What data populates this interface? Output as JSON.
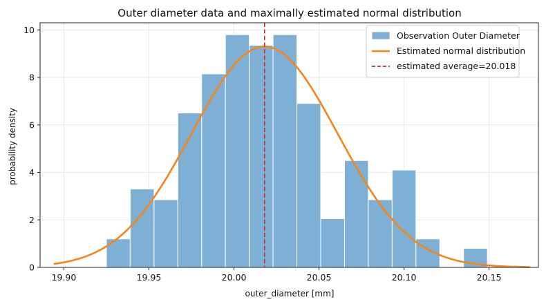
{
  "chart_data": {
    "type": "bar",
    "title": "Outer diameter data and maximally estimated normal distribution",
    "xlabel": "outer_diameter [mm]",
    "ylabel": "probability density",
    "xlim": [
      19.886,
      20.179
    ],
    "ylim": [
      0,
      10.3
    ],
    "x_ticks": [
      19.9,
      19.95,
      20.0,
      20.05,
      20.1,
      20.15
    ],
    "x_tick_labels": [
      "19.90",
      "19.95",
      "20.00",
      "20.05",
      "20.10",
      "20.15"
    ],
    "y_ticks": [
      0,
      2,
      4,
      6,
      8,
      10
    ],
    "y_tick_labels": [
      "0",
      "2",
      "4",
      "6",
      "8",
      "10"
    ],
    "grid": true,
    "legend_position": "top-right",
    "histogram": {
      "name": "Observation Outer Diameter",
      "color": "#7eb0d5",
      "bin_edges": [
        19.925,
        19.939,
        19.953,
        19.967,
        19.981,
        19.995,
        20.009,
        20.023,
        20.037,
        20.051,
        20.065,
        20.079,
        20.093,
        20.107,
        20.121,
        20.135,
        20.149
      ],
      "densities": [
        1.2,
        3.3,
        2.85,
        6.5,
        8.15,
        9.8,
        9.35,
        9.8,
        6.9,
        2.05,
        4.5,
        2.85,
        4.1,
        1.2,
        0,
        0.8
      ]
    },
    "normal_fit": {
      "name": "Estimated normal distribution",
      "color": "#f58518",
      "mean": 20.018,
      "std": 0.0429,
      "x_range": [
        19.894,
        20.174
      ]
    },
    "mean_line": {
      "name": "estimated average=20.018",
      "color": "#d62728",
      "x": 20.018
    }
  }
}
